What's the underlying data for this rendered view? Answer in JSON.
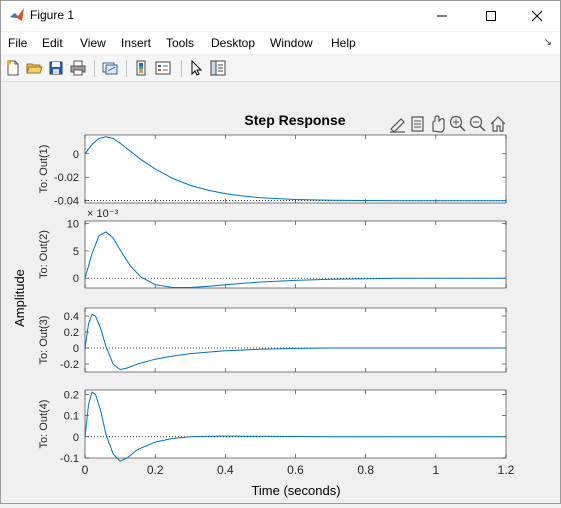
{
  "window": {
    "title": "Figure 1",
    "controls": {
      "minimize": "minimize",
      "maximize": "maximize",
      "close": "close"
    }
  },
  "menubar": {
    "items": [
      {
        "label": "File"
      },
      {
        "label": "Edit"
      },
      {
        "label": "View"
      },
      {
        "label": "Insert"
      },
      {
        "label": "Tools"
      },
      {
        "label": "Desktop"
      },
      {
        "label": "Window"
      },
      {
        "label": "Help"
      }
    ]
  },
  "toolbar": {
    "buttons": [
      "new-figure-icon",
      "open-file-icon",
      "save-icon",
      "print-icon",
      "link-plot-icon",
      "insert-colorbar-icon",
      "insert-legend-icon",
      "pointer-icon",
      "property-inspector-icon"
    ]
  },
  "axes_toolbar": {
    "buttons": [
      "brush-icon",
      "datatip-icon",
      "pan-icon",
      "zoom-in-icon",
      "zoom-out-icon",
      "home-icon"
    ]
  },
  "chart_data": {
    "type": "line",
    "title": "Step Response",
    "xlabel": "Time (seconds)",
    "ylabel": "Amplitude",
    "x_ticks": [
      "0",
      "0.2",
      "0.4",
      "0.6",
      "0.8",
      "1",
      "1.2"
    ],
    "xlim": [
      0,
      1.2
    ],
    "line_color": "#0072bd",
    "subplots": [
      {
        "ylabel": "To: Out(1)",
        "ylim": [
          -0.042,
          0.016
        ],
        "y_ticks": [
          "0",
          "-0.02",
          "-0.04"
        ],
        "y_tick_values": [
          0,
          -0.02,
          -0.04
        ],
        "exponent": "",
        "steady_state": -0.04,
        "x": [
          0,
          0.02,
          0.04,
          0.06,
          0.08,
          0.1,
          0.13,
          0.16,
          0.2,
          0.25,
          0.3,
          0.35,
          0.4,
          0.45,
          0.5,
          0.6,
          0.7,
          0.8,
          0.9,
          1.0,
          1.2
        ],
        "y": [
          0,
          0.008,
          0.013,
          0.0145,
          0.013,
          0.009,
          0.002,
          -0.005,
          -0.013,
          -0.021,
          -0.027,
          -0.031,
          -0.034,
          -0.036,
          -0.0375,
          -0.039,
          -0.0396,
          -0.0399,
          -0.04,
          -0.04,
          -0.04
        ]
      },
      {
        "ylabel": "To: Out(2)",
        "ylim": [
          -0.0018,
          0.0105
        ],
        "y_ticks": [
          "10",
          "5",
          "0"
        ],
        "y_tick_values": [
          0.01,
          0.005,
          0
        ],
        "exponent": "× 10⁻³",
        "steady_state": 0,
        "x": [
          0,
          0.02,
          0.04,
          0.06,
          0.08,
          0.1,
          0.13,
          0.16,
          0.2,
          0.25,
          0.3,
          0.35,
          0.4,
          0.5,
          0.6,
          0.7,
          0.8,
          0.9,
          1.0,
          1.2
        ],
        "y": [
          0,
          0.0045,
          0.0078,
          0.0085,
          0.0074,
          0.0052,
          0.0022,
          0.0002,
          -0.0012,
          -0.0017,
          -0.0017,
          -0.0015,
          -0.0012,
          -0.0007,
          -0.0004,
          -0.0002,
          -0.0001,
          0,
          0,
          0
        ]
      },
      {
        "ylabel": "To: Out(3)",
        "ylim": [
          -0.3,
          0.5
        ],
        "y_ticks": [
          "0.4",
          "0.2",
          "0",
          "-0.2"
        ],
        "y_tick_values": [
          0.4,
          0.2,
          0,
          -0.2
        ],
        "exponent": "",
        "steady_state": 0,
        "x": [
          0,
          0.01,
          0.02,
          0.03,
          0.045,
          0.06,
          0.08,
          0.1,
          0.12,
          0.15,
          0.2,
          0.25,
          0.3,
          0.4,
          0.5,
          0.6,
          0.7,
          0.8,
          1.0,
          1.2
        ],
        "y": [
          0,
          0.3,
          0.42,
          0.4,
          0.24,
          0.02,
          -0.2,
          -0.27,
          -0.25,
          -0.2,
          -0.14,
          -0.1,
          -0.07,
          -0.035,
          -0.015,
          -0.005,
          0,
          0,
          0,
          0
        ]
      },
      {
        "ylabel": "To: Out(4)",
        "ylim": [
          -0.1,
          0.22
        ],
        "y_ticks": [
          "0.2",
          "0.1",
          "0",
          "-0.1"
        ],
        "y_tick_values": [
          0.2,
          0.1,
          0,
          -0.1
        ],
        "exponent": "",
        "steady_state": 0,
        "x": [
          0,
          0.01,
          0.02,
          0.03,
          0.045,
          0.06,
          0.08,
          0.1,
          0.12,
          0.15,
          0.2,
          0.25,
          0.3,
          0.35,
          0.4,
          0.5,
          0.6,
          0.7,
          0.8,
          1.0,
          1.2
        ],
        "y": [
          0,
          0.15,
          0.21,
          0.2,
          0.12,
          0.01,
          -0.08,
          -0.115,
          -0.1,
          -0.06,
          -0.025,
          -0.008,
          0,
          0.002,
          0.003,
          0.002,
          0.001,
          0,
          0,
          0,
          0
        ]
      }
    ]
  }
}
